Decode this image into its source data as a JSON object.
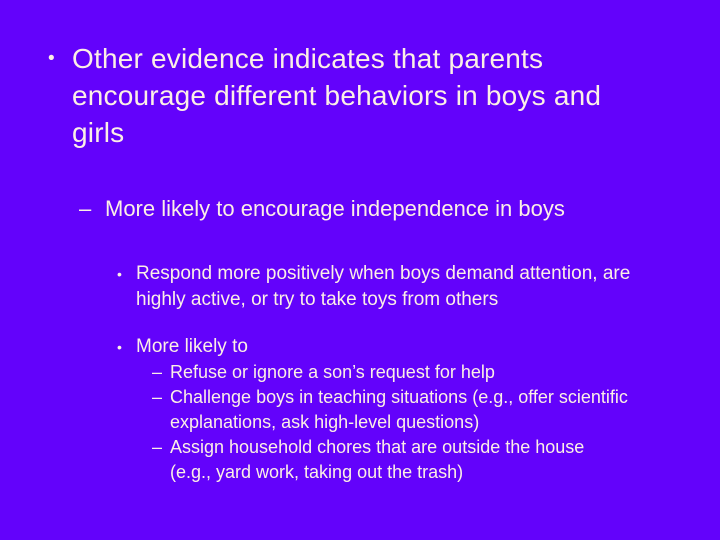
{
  "slide": {
    "background_color": "#6302FB",
    "text_color": "#FCEFE6",
    "bullets": [
      {
        "level": 1,
        "marker": "•",
        "text": "Other evidence indicates that parents\nencourage different behaviors in boys and\ngirls"
      },
      {
        "level": 2,
        "marker": "–",
        "text": "More likely to encourage independence in boys"
      },
      {
        "level": 3,
        "marker": "•",
        "text": "Respond more positively when boys demand attention, are\nhighly active, or try to take toys from others"
      },
      {
        "level": 3,
        "marker": "•",
        "text": "More likely to"
      },
      {
        "level": 4,
        "marker": "–",
        "text": "Refuse or ignore a son’s request for help"
      },
      {
        "level": 4,
        "marker": "–",
        "text": "Challenge boys in teaching situations (e.g., offer scientific\nexplanations, ask high-level questions)"
      },
      {
        "level": 4,
        "marker": "–",
        "text": "Assign household chores that are outside the house\n(e.g., yard work, taking out the trash)"
      }
    ]
  }
}
